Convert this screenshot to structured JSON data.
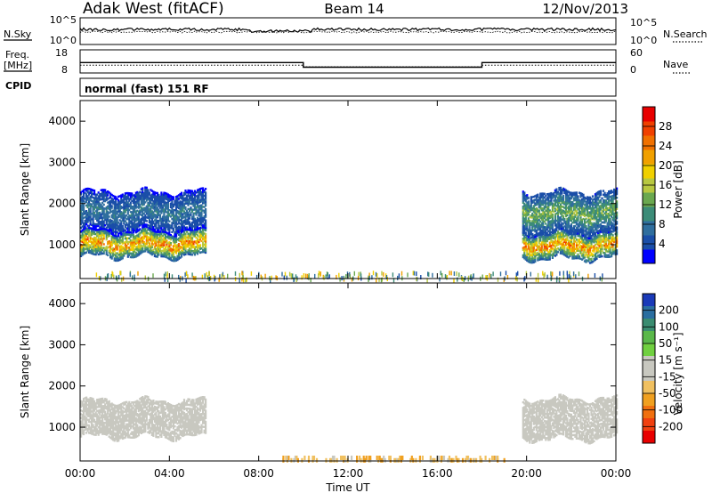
{
  "header": {
    "station": "Adak West (fitACF)",
    "beam": "Beam 14",
    "date": "12/Nov/2013"
  },
  "noise_panel": {
    "left_label": "N.Sky",
    "right_label": "N.Search",
    "tick_top": "10^5",
    "tick_bottom": "10^0"
  },
  "freq_panel": {
    "left_label_1": "Freq.",
    "left_label_2": "[MHz]",
    "right_label": "Nave",
    "left_ticks": [
      "18",
      "8"
    ],
    "right_ticks": [
      "60",
      "0"
    ]
  },
  "cpid": {
    "label": "CPID",
    "value": "normal (fast) 151 RF"
  },
  "power_colorbar": {
    "label": "Power [dB]",
    "ticks": [
      "4",
      "8",
      "12",
      "16",
      "20",
      "24",
      "28"
    ],
    "colors": [
      "#0000ff",
      "#1a4ea8",
      "#2f6e9e",
      "#3c8c78",
      "#6aa84f",
      "#b8c840",
      "#f0d000",
      "#f0a000",
      "#f07000",
      "#f04000",
      "#e80000"
    ]
  },
  "velocity_colorbar": {
    "label": "Velocity [m s⁻¹]",
    "ticks": [
      "200",
      "100",
      "50",
      "15",
      "-15",
      "-50",
      "-100",
      "-200"
    ],
    "colors": [
      "#1a3ab8",
      "#2a6ea0",
      "#3a8c70",
      "#5ab84a",
      "#70d040",
      "#c8c8c0",
      "#c8c8c0",
      "#f0c060",
      "#f0a020",
      "#f07010",
      "#f04010",
      "#e80000"
    ]
  },
  "chart_data": [
    {
      "type": "heatmap",
      "name": "power",
      "xlabel": "Time UT",
      "ylabel": "Slant Range [km]",
      "x_ticks": [
        "00:00",
        "04:00",
        "08:00",
        "12:00",
        "16:00",
        "20:00",
        "00:00"
      ],
      "y_ticks": [
        1000,
        2000,
        3000,
        4000
      ],
      "xlim": [
        0,
        24
      ],
      "ylim": [
        180,
        4500
      ],
      "value_range": [
        0,
        30
      ],
      "echo_regions": [
        {
          "t_start": 0.0,
          "t_end": 5.6,
          "range_low": 750,
          "range_high": 1350,
          "peak_power": 28
        },
        {
          "t_start": 0.0,
          "t_end": 5.6,
          "range_low": 1350,
          "range_high": 2300,
          "peak_power": 10
        },
        {
          "t_start": 19.8,
          "t_end": 24.0,
          "range_low": 700,
          "range_high": 1300,
          "peak_power": 28
        },
        {
          "t_start": 19.8,
          "t_end": 24.0,
          "range_low": 1300,
          "range_high": 2300,
          "peak_power": 16
        }
      ]
    },
    {
      "type": "heatmap",
      "name": "velocity",
      "xlabel": "Time UT",
      "ylabel": "Slant Range [km]",
      "x_ticks": [
        "00:00",
        "04:00",
        "08:00",
        "12:00",
        "16:00",
        "20:00",
        "00:00"
      ],
      "y_ticks": [
        1000,
        2000,
        3000,
        4000
      ],
      "xlim": [
        0,
        24
      ],
      "ylim": [
        180,
        4500
      ],
      "value_range": [
        -200,
        200
      ],
      "echo_regions": [
        {
          "t_start": 0.0,
          "t_end": 5.6,
          "range_low": 800,
          "range_high": 1700,
          "typical_velocity": 0
        },
        {
          "t_start": 19.8,
          "t_end": 24.0,
          "range_low": 750,
          "range_high": 1700,
          "typical_velocity": 0
        },
        {
          "t_start": 9.0,
          "t_end": 19.0,
          "range_low": 190,
          "range_high": 320,
          "typical_velocity": -50
        }
      ]
    },
    {
      "type": "line",
      "name": "frequency",
      "ylabel": "Freq. [MHz]",
      "ylim": [
        8,
        18
      ],
      "x": [
        0,
        10,
        10,
        18,
        18,
        24
      ],
      "values": [
        12.5,
        12.5,
        10.5,
        10.5,
        12.5,
        12.5
      ]
    },
    {
      "type": "line",
      "name": "nave",
      "ylabel": "Nave",
      "ylim": [
        0,
        60
      ],
      "x": [
        0,
        10,
        10,
        18,
        18,
        24
      ],
      "values": [
        20,
        20,
        16,
        16,
        20,
        20
      ]
    }
  ]
}
